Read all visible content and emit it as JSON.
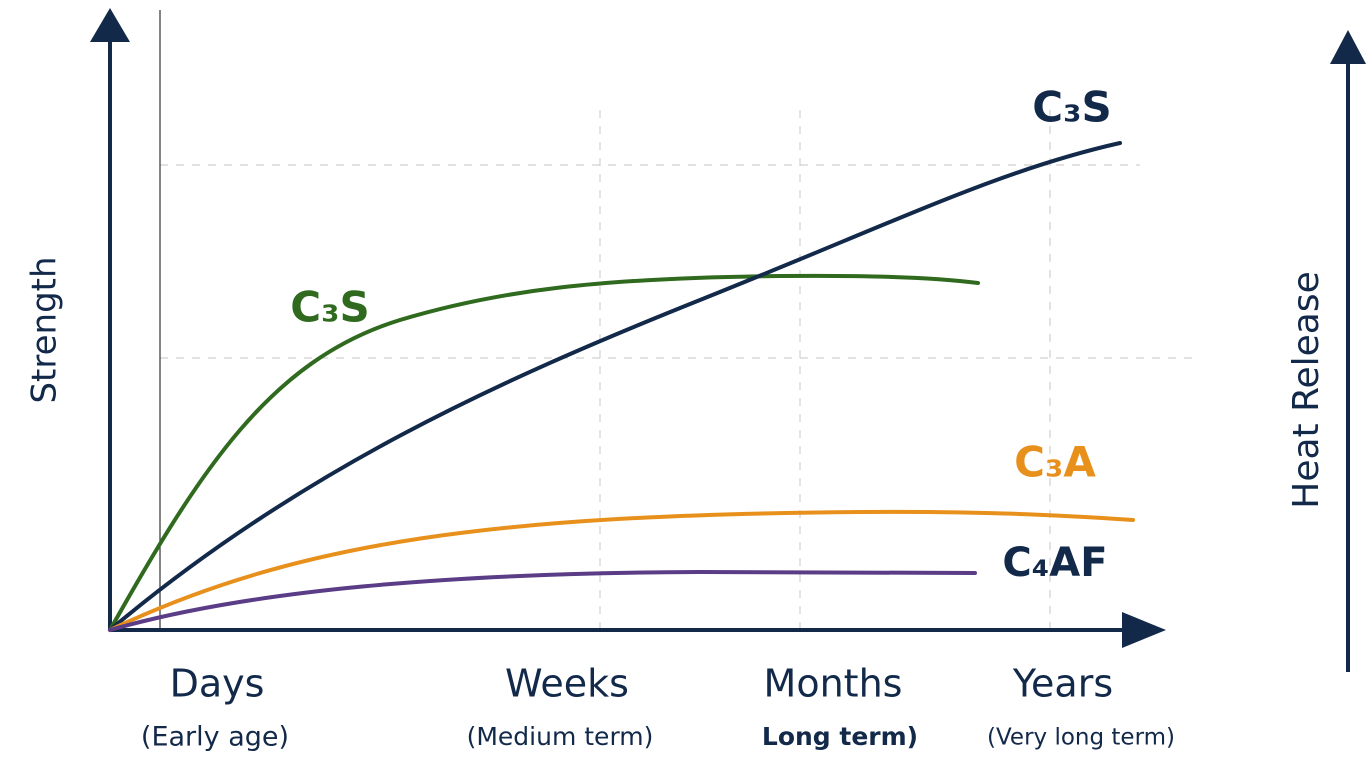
{
  "axes": {
    "y_left": "Strength",
    "y_right": "Heat Release"
  },
  "x_labels": [
    {
      "label": "Days",
      "sublabel": "(Early age)"
    },
    {
      "label": "Weeks",
      "sublabel": "(Medium term)"
    },
    {
      "label": "Months",
      "sublabel": "Long term)"
    },
    {
      "label": "Years",
      "sublabel": "(Very long term)"
    }
  ],
  "curves": [
    {
      "label": "C₃S"
    },
    {
      "label": "C₃S"
    },
    {
      "label": "C₃A"
    },
    {
      "label": "C₄AF"
    }
  ]
}
